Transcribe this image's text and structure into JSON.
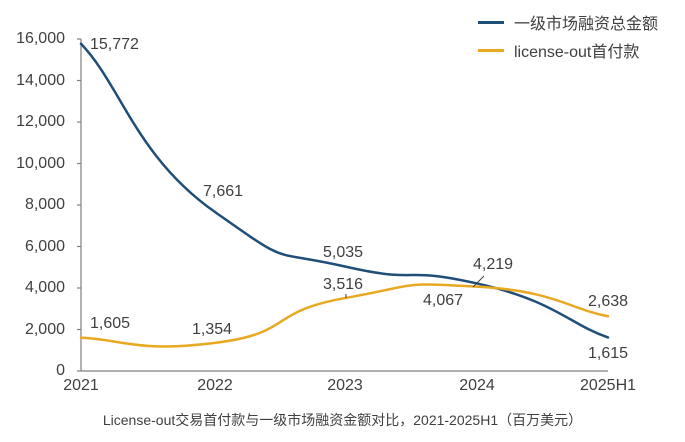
{
  "chart_data": {
    "type": "line",
    "title": "",
    "caption": "License-out交易首付款与一级市场融资金额对比，2021-2025H1（百万美元）",
    "xlabel": "",
    "ylabel": "",
    "categories": [
      "2021",
      "2022",
      "2023",
      "2024",
      "2025H1"
    ],
    "ylim": [
      0,
      16000
    ],
    "yticks": [
      "0",
      "2,000",
      "4,000",
      "6,000",
      "8,000",
      "10,000",
      "12,000",
      "14,000",
      "16,000"
    ],
    "grid": false,
    "legend_position": "top-right",
    "series": [
      {
        "name": "一级市场融资总金额",
        "color": "#1f4e79",
        "values": [
          15772,
          7661,
          5035,
          4219,
          1615
        ],
        "labels": [
          "15,772",
          "7,661",
          "5,035",
          "4,219",
          "1,615"
        ]
      },
      {
        "name": "license-out首付款",
        "color": "#e8a920",
        "values": [
          1605,
          1354,
          3516,
          4067,
          2638
        ],
        "labels": [
          "1,605",
          "1,354",
          "3,516",
          "4,067",
          "2,638"
        ]
      }
    ]
  },
  "legend": {
    "items": [
      {
        "label": "一级市场融资总金额",
        "color": "#1f4e79"
      },
      {
        "label": "license-out首付款",
        "color": "#e8a920"
      }
    ]
  }
}
